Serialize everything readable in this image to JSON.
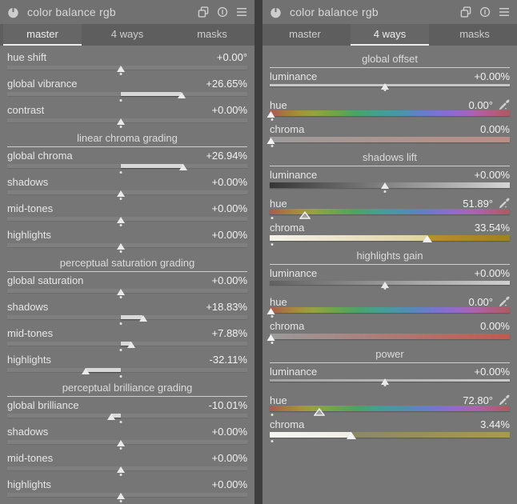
{
  "colors": {
    "panel_bg": "#767676",
    "header_bg": "#717171",
    "tabbar_bg": "#5e5e5e",
    "divider": "#3e3e3e",
    "accent_underline": "#ededed",
    "text": "#e6e6e6"
  },
  "panels": [
    {
      "title": "color balance rgb",
      "header_icons": [
        {
          "name": "power-icon"
        },
        {
          "name": "multi-instance-icon"
        },
        {
          "name": "reset-icon"
        },
        {
          "name": "presets-menu-icon"
        }
      ],
      "tabs": [
        {
          "label": "master",
          "active": true
        },
        {
          "label": "4 ways",
          "active": false
        },
        {
          "label": "masks",
          "active": false
        }
      ],
      "sections": [
        {
          "header": null,
          "rows": [
            {
              "label": "hue shift",
              "value": "+0.00°",
              "kind": "mono",
              "pos": 0.473
            },
            {
              "label": "global vibrance",
              "value": "+26.65%",
              "kind": "mono",
              "pos": 0.725
            },
            {
              "label": "contrast",
              "value": "+0.00%",
              "kind": "mono",
              "pos": 0.473
            }
          ]
        },
        {
          "header": "linear chroma grading",
          "rows": [
            {
              "label": "global chroma",
              "value": "+26.94%",
              "kind": "mono",
              "pos": 0.732
            },
            {
              "label": "shadows",
              "value": "+0.00%",
              "kind": "mono",
              "pos": 0.473
            },
            {
              "label": "mid-tones",
              "value": "+0.00%",
              "kind": "mono",
              "pos": 0.473
            },
            {
              "label": "highlights",
              "value": "+0.00%",
              "kind": "mono",
              "pos": 0.473
            }
          ]
        },
        {
          "header": "perceptual saturation grading",
          "rows": [
            {
              "label": "global saturation",
              "value": "+0.00%",
              "kind": "mono",
              "pos": 0.473
            },
            {
              "label": "shadows",
              "value": "+18.83%",
              "kind": "mono",
              "pos": 0.565
            },
            {
              "label": "mid-tones",
              "value": "+7.88%",
              "kind": "mono",
              "pos": 0.517
            },
            {
              "label": "highlights",
              "value": "-32.11%",
              "kind": "mono",
              "pos": 0.325
            }
          ]
        },
        {
          "header": "perceptual brilliance grading",
          "rows": [
            {
              "label": "global brilliance",
              "value": "-10.01%",
              "kind": "mono",
              "pos": 0.432
            },
            {
              "label": "shadows",
              "value": "+0.00%",
              "kind": "mono",
              "pos": 0.473
            },
            {
              "label": "mid-tones",
              "value": "+0.00%",
              "kind": "mono",
              "pos": 0.473
            },
            {
              "label": "highlights",
              "value": "+0.00%",
              "kind": "mono",
              "pos": 0.473
            }
          ]
        }
      ]
    },
    {
      "title": "color balance rgb",
      "header_icons": [
        {
          "name": "power-icon"
        },
        {
          "name": "multi-instance-icon"
        },
        {
          "name": "reset-icon"
        },
        {
          "name": "presets-menu-icon"
        }
      ],
      "tabs": [
        {
          "label": "master",
          "active": false
        },
        {
          "label": "4 ways",
          "active": true
        },
        {
          "label": "masks",
          "active": false
        }
      ],
      "sections": [
        {
          "header": "global offset",
          "rows": [
            {
              "label": "luminance",
              "value": "+0.00%",
              "kind": "grad",
              "track": "t-lum-flat",
              "h": 3,
              "pos": 0.48,
              "marker": "solid",
              "dot": "center"
            },
            {
              "label": "hue",
              "value": "0.00°",
              "kind": "grad",
              "track": "t-hue",
              "h": 7,
              "pos": 0.006,
              "marker": "edge",
              "dot": "left",
              "picker": true
            },
            {
              "label": "chroma",
              "value": "0.00%",
              "kind": "grad",
              "track": "t-chroma-muted",
              "h": 7,
              "pos": 0.006,
              "marker": "edge",
              "dot": "left"
            }
          ]
        },
        {
          "header": "shadows lift",
          "rows": [
            {
              "label": "luminance",
              "value": "+0.00%",
              "kind": "grad",
              "track": "t-lum-lift",
              "h": 7,
              "pos": 0.48,
              "marker": "solid",
              "dot": "center"
            },
            {
              "label": "hue",
              "value": "51.89°",
              "kind": "grad",
              "track": "t-hue",
              "h": 7,
              "pos": 0.145,
              "marker": "hollow",
              "dot": "left",
              "picker": true
            },
            {
              "label": "chroma",
              "value": "33.54%",
              "kind": "split",
              "h": 7,
              "pos": 0.655,
              "left_colors": [
                "#f5f3ea",
                "#e0d2a2"
              ],
              "right_colors": [
                "#b3912c",
                "#a0821d"
              ],
              "marker": "big",
              "dot": "left"
            }
          ]
        },
        {
          "header": "highlights gain",
          "rows": [
            {
              "label": "luminance",
              "value": "+0.00%",
              "kind": "grad",
              "track": "t-lum-gain",
              "h": 5,
              "pos": 0.48,
              "marker": "solid",
              "dot": "center"
            },
            {
              "label": "hue",
              "value": "0.00°",
              "kind": "grad",
              "track": "t-hue",
              "h": 7,
              "pos": 0.006,
              "marker": "edge",
              "dot": "left",
              "picker": true
            },
            {
              "label": "chroma",
              "value": "0.00%",
              "kind": "grad",
              "track": "t-chroma-red",
              "h": 7,
              "pos": 0.006,
              "marker": "edge",
              "dot": "left"
            }
          ]
        },
        {
          "header": "power",
          "rows": [
            {
              "label": "luminance",
              "value": "+0.00%",
              "kind": "grad",
              "track": "t-lum-power",
              "h": 3,
              "pos": 0.48,
              "marker": "solid",
              "dot": "center"
            },
            {
              "label": "hue",
              "value": "72.80°",
              "kind": "grad",
              "track": "t-hue",
              "h": 7,
              "pos": 0.205,
              "marker": "hollow",
              "dot": "left",
              "picker": true
            },
            {
              "label": "chroma",
              "value": "3.44%",
              "kind": "split",
              "h": 7,
              "pos": 0.34,
              "left_colors": [
                "#f5f5f3",
                "#efeee6"
              ],
              "right_colors": [
                "#8b8866",
                "#a89a50"
              ],
              "marker": "big",
              "dot": "left"
            }
          ]
        }
      ]
    }
  ]
}
